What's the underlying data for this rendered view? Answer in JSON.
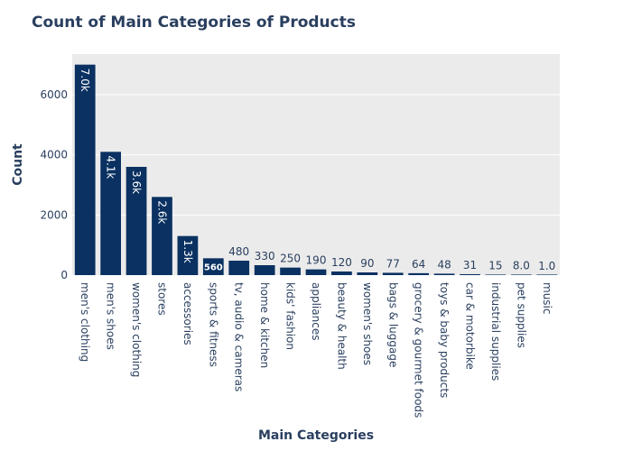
{
  "chart_data": {
    "type": "bar",
    "title": "Count of Main Categories of Products",
    "xlabel": "Main Categories",
    "ylabel": "Count",
    "ylim": [
      0,
      7350
    ],
    "yticks": [
      0,
      2000,
      4000,
      6000
    ],
    "ytick_labels": [
      "0",
      "2000",
      "4000",
      "6000"
    ],
    "grid": true,
    "legend": "none",
    "bar_color": "#0a3161",
    "plot_bg": "#ebebeb",
    "categories": [
      "men's clothing",
      "men's shoes",
      "women's clothing",
      "stores",
      "accessories",
      "sports & fitness",
      "tv, audio & cameras",
      "home & kitchen",
      "kids' fashion",
      "appliances",
      "beauty & health",
      "women's shoes",
      "bags & luggage",
      "grocery & gourmet foods",
      "toys & baby products",
      "car & motorbike",
      "industrial supplies",
      "pet supplies",
      "music"
    ],
    "values": [
      7000,
      4100,
      3600,
      2600,
      1300,
      560,
      480,
      330,
      250,
      190,
      120,
      90,
      77,
      64,
      48,
      31,
      15,
      8,
      1
    ],
    "data_labels": [
      "7.0k",
      "4.1k",
      "3.6k",
      "2.6k",
      "1.3k",
      "560",
      "480",
      "330",
      "250",
      "190",
      "120",
      "90",
      "77",
      "64",
      "48",
      "31",
      "15",
      "8.0",
      "1.0"
    ]
  }
}
